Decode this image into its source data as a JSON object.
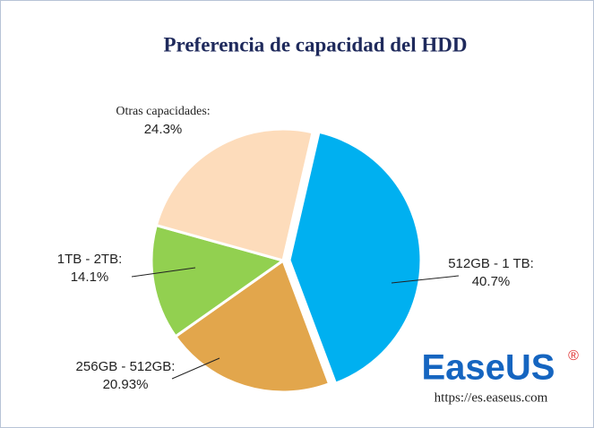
{
  "chart_data": {
    "type": "pie",
    "title": "Preferencia de capacidad del HDD",
    "categories": [
      "512GB - 1 TB:",
      "256GB - 512GB:",
      "1TB - 2TB:",
      "Otras capacidades:"
    ],
    "values": [
      40.7,
      20.93,
      14.1,
      24.3
    ],
    "value_labels": [
      "40.7%",
      "20.93%",
      "14.1%",
      "24.3%"
    ],
    "colors": [
      "#00b0f0",
      "#e2a64c",
      "#92d050",
      "#fddcbb"
    ]
  },
  "watermark": {
    "brand": "EaseUS",
    "registered": "®",
    "url": "https://es.easeus.com"
  }
}
